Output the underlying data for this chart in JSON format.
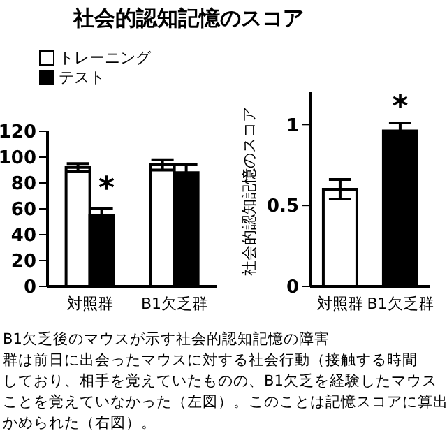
{
  "chart_data": [
    {
      "type": "bar",
      "title": "社会的認知記憶のスコア",
      "categories": [
        "対照群",
        "B1欠乏群"
      ],
      "series": [
        {
          "name": "トレーニング",
          "color": "#ffffff",
          "values": [
            92,
            94
          ],
          "errors": [
            3,
            4
          ]
        },
        {
          "name": "テスト",
          "color": "#000000",
          "values": [
            55,
            88
          ],
          "errors": [
            5,
            6
          ]
        }
      ],
      "ylim": [
        0,
        120
      ],
      "yticks": [
        0,
        20,
        40,
        60,
        80,
        100,
        120
      ],
      "grid": false,
      "legend": "top left",
      "annotations": [
        {
          "text": "*",
          "x": "対照群",
          "y": 55
        },
        "B1欠乏後のマウスが示す社会的認知記憶の障害",
        "群は前日に出会ったマウスに対する社会行動（接触する時間",
        "しており、相手を覚えていたものの、B1欠乏を経験したマウス",
        "ことを覚えていなかった（左図）。このことは記憶スコアに算出",
        "かめられた（右図）。"
      ]
    },
    {
      "type": "bar",
      "ylabel": "社会的認知記憶のスコア",
      "categories": [
        "対照群",
        "B1欠乏群"
      ],
      "values": [
        0.6,
        0.96
      ],
      "errors": [
        0.06,
        0.05
      ],
      "colors": [
        "#ffffff",
        "#000000"
      ],
      "ylim": [
        0,
        1.2
      ],
      "yticks": [
        0,
        0.5,
        1
      ],
      "grid": false,
      "annotations": [
        {
          "text": "*",
          "x": "B1欠乏群",
          "y": 0.96
        }
      ]
    }
  ]
}
